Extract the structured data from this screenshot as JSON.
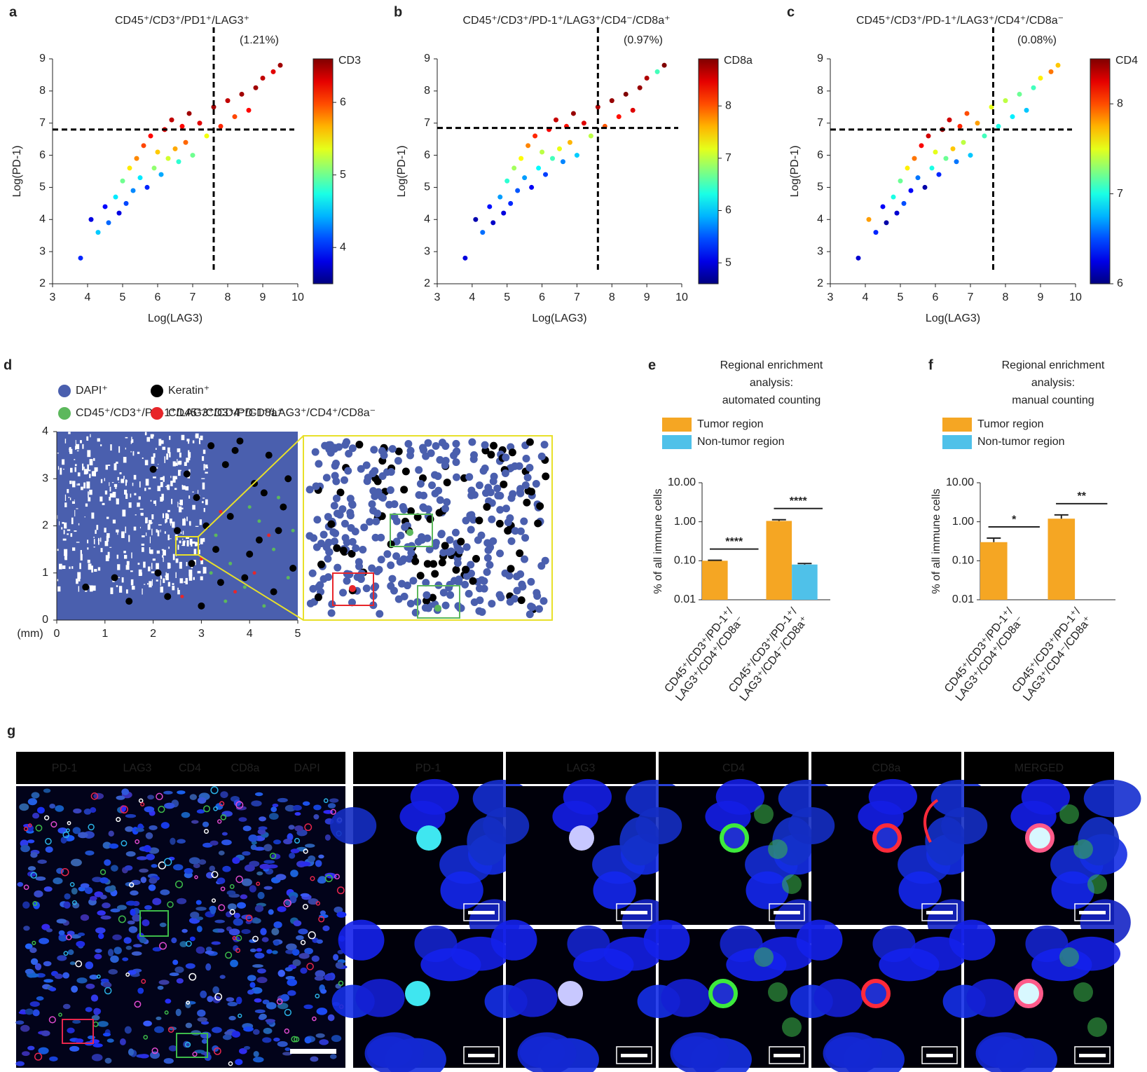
{
  "chart_data": [
    {
      "panel": "a",
      "type": "scatter",
      "title": "CD45⁺/CD3⁺/PD1⁺/LAG3⁺",
      "annotation": "(1.21%)",
      "xlabel": "Log(LAG3)",
      "ylabel": "Log(PD-1)",
      "xlim": [
        3,
        10
      ],
      "ylim": [
        2,
        9
      ],
      "xticks": [
        3,
        4,
        5,
        6,
        7,
        8,
        9,
        10
      ],
      "yticks": [
        2,
        3,
        4,
        5,
        6,
        7,
        8,
        9
      ],
      "threshold_x": 7.6,
      "threshold_y": 6.8,
      "colorbar_label": "CD3",
      "colormap": "jet",
      "clim": [
        3.5,
        6.6
      ],
      "cticks": [
        4,
        5,
        6
      ],
      "x": [
        3.8,
        4.1,
        4.3,
        4.5,
        4.6,
        4.8,
        4.9,
        5.0,
        5.1,
        5.2,
        5.3,
        5.4,
        5.5,
        5.6,
        5.7,
        5.8,
        5.9,
        6.0,
        6.1,
        6.2,
        6.3,
        6.4,
        6.5,
        6.6,
        6.7,
        6.8,
        6.9,
        7.0,
        7.2,
        7.4,
        7.6,
        7.8,
        8.0,
        8.2,
        8.4,
        8.6,
        8.8,
        9.0,
        9.3,
        9.5
      ],
      "y": [
        2.8,
        4.0,
        3.6,
        4.4,
        3.9,
        4.7,
        4.2,
        5.2,
        4.5,
        5.6,
        4.9,
        5.9,
        5.3,
        6.3,
        5.0,
        6.6,
        5.6,
        6.1,
        5.4,
        6.8,
        5.9,
        7.1,
        6.2,
        5.8,
        6.9,
        6.4,
        7.3,
        6.0,
        7.0,
        6.6,
        7.5,
        6.9,
        7.7,
        7.2,
        7.9,
        7.4,
        8.1,
        8.4,
        8.6,
        8.8
      ],
      "color_values": [
        4.0,
        3.8,
        4.5,
        3.9,
        4.2,
        4.6,
        3.8,
        5.0,
        4.1,
        5.5,
        4.3,
        5.8,
        4.6,
        6.0,
        4.0,
        6.2,
        5.1,
        5.6,
        4.4,
        6.3,
        5.3,
        6.4,
        5.7,
        4.8,
        6.2,
        5.9,
        6.5,
        5.0,
        6.3,
        5.4,
        6.5,
        6.1,
        6.4,
        6.0,
        6.5,
        6.2,
        6.5,
        6.4,
        6.3,
        6.5
      ]
    },
    {
      "panel": "b",
      "type": "scatter",
      "title": "CD45⁺/CD3⁺/PD-1⁺/LAG3⁺/CD4⁻/CD8a⁺",
      "annotation": "(0.97%)",
      "xlabel": "Log(LAG3)",
      "ylabel": "Log(PD-1)",
      "xlim": [
        3,
        10
      ],
      "ylim": [
        2,
        9
      ],
      "xticks": [
        3,
        4,
        5,
        6,
        7,
        8,
        9,
        10
      ],
      "yticks": [
        2,
        3,
        4,
        5,
        6,
        7,
        8,
        9
      ],
      "threshold_x": 7.6,
      "threshold_y": 6.85,
      "colorbar_label": "CD8a",
      "colormap": "jet",
      "clim": [
        4.6,
        8.9
      ],
      "cticks": [
        5,
        6,
        7,
        8
      ],
      "x": [
        3.8,
        4.1,
        4.3,
        4.5,
        4.6,
        4.8,
        4.9,
        5.0,
        5.1,
        5.2,
        5.3,
        5.4,
        5.5,
        5.6,
        5.7,
        5.8,
        5.9,
        6.0,
        6.1,
        6.2,
        6.3,
        6.4,
        6.5,
        6.6,
        6.7,
        6.8,
        6.9,
        7.0,
        7.2,
        7.4,
        7.6,
        7.8,
        8.0,
        8.2,
        8.4,
        8.6,
        8.8,
        9.0,
        9.3,
        9.5
      ],
      "y": [
        2.8,
        4.0,
        3.6,
        4.4,
        3.9,
        4.7,
        4.2,
        5.2,
        4.5,
        5.6,
        4.9,
        5.9,
        5.3,
        6.3,
        5.0,
        6.6,
        5.6,
        6.1,
        5.4,
        6.8,
        5.9,
        7.1,
        6.2,
        5.8,
        6.9,
        6.4,
        7.3,
        6.0,
        7.0,
        6.6,
        7.5,
        6.9,
        7.7,
        7.2,
        7.9,
        7.4,
        8.1,
        8.4,
        8.6,
        8.8
      ],
      "color_values": [
        5.0,
        4.8,
        5.6,
        5.2,
        4.9,
        5.8,
        5.0,
        6.4,
        5.3,
        6.9,
        5.5,
        7.3,
        5.8,
        7.8,
        5.1,
        8.2,
        6.2,
        7.0,
        5.4,
        8.4,
        6.5,
        8.6,
        7.2,
        5.7,
        8.3,
        7.6,
        8.8,
        6.0,
        8.5,
        7.0,
        8.7,
        8.0,
        8.8,
        8.3,
        8.9,
        8.5,
        8.8,
        8.7,
        6.5,
        8.9
      ]
    },
    {
      "panel": "c",
      "type": "scatter",
      "title": "CD45⁺/CD3⁺/PD-1⁺/LAG3⁺/CD4⁺/CD8a⁻",
      "annotation": "(0.08%)",
      "xlabel": "Log(LAG3)",
      "ylabel": "Log(PD-1)",
      "xlim": [
        3,
        10
      ],
      "ylim": [
        2,
        9
      ],
      "xticks": [
        3,
        4,
        5,
        6,
        7,
        8,
        9,
        10
      ],
      "yticks": [
        2,
        3,
        4,
        5,
        6,
        7,
        8,
        9
      ],
      "threshold_x": 7.65,
      "threshold_y": 6.8,
      "colorbar_label": "CD4",
      "colormap": "jet",
      "clim": [
        6,
        8.5
      ],
      "cticks": [
        6,
        7,
        8
      ],
      "x": [
        3.8,
        4.1,
        4.3,
        4.5,
        4.6,
        4.8,
        4.9,
        5.0,
        5.1,
        5.2,
        5.3,
        5.4,
        5.5,
        5.6,
        5.7,
        5.8,
        5.9,
        6.0,
        6.1,
        6.2,
        6.3,
        6.4,
        6.5,
        6.6,
        6.7,
        6.8,
        6.9,
        7.0,
        7.2,
        7.4,
        7.6,
        7.8,
        8.0,
        8.2,
        8.4,
        8.6,
        8.8,
        9.0,
        9.3,
        9.5
      ],
      "y": [
        2.8,
        4.0,
        3.6,
        4.4,
        3.9,
        4.7,
        4.2,
        5.2,
        4.5,
        5.6,
        4.9,
        5.9,
        5.3,
        6.3,
        5.0,
        6.6,
        5.6,
        6.1,
        5.4,
        6.8,
        5.9,
        7.1,
        6.2,
        5.8,
        6.9,
        6.4,
        7.3,
        6.0,
        7.0,
        6.6,
        7.5,
        6.9,
        7.7,
        7.2,
        7.9,
        7.4,
        8.1,
        8.4,
        8.6,
        8.8
      ],
      "color_values": [
        6.2,
        7.8,
        6.4,
        6.3,
        6.1,
        7.0,
        6.2,
        7.2,
        6.5,
        7.6,
        6.3,
        7.9,
        6.6,
        8.2,
        6.1,
        8.3,
        7.0,
        7.5,
        6.4,
        8.4,
        7.2,
        8.3,
        7.7,
        6.6,
        8.1,
        7.4,
        8.0,
        6.8,
        7.8,
        7.1,
        7.5,
        7.0,
        7.4,
        6.9,
        7.2,
        6.8,
        7.1,
        7.6,
        7.9,
        7.7
      ]
    },
    {
      "panel": "d",
      "type": "map",
      "x_unit": "(mm)",
      "xlim": [
        0,
        5
      ],
      "ylim": [
        0,
        4
      ],
      "xticks": [
        0,
        1,
        2,
        3,
        4,
        5
      ],
      "yticks": [
        0,
        1,
        2,
        3,
        4
      ],
      "series": [
        {
          "name": "DAPI⁺",
          "color": "#4a5fae"
        },
        {
          "name": "Keratin⁺",
          "color": "#000000",
          "x": [
            2.1,
            2.3,
            2.5,
            2.7,
            2.9,
            3.0,
            3.2,
            3.3,
            3.5,
            3.6,
            3.8,
            3.9,
            4.1,
            4.2,
            4.4,
            4.5,
            4.7,
            4.8,
            2.8,
            3.1,
            3.4,
            3.7,
            4.0,
            4.3,
            4.6,
            1.2,
            1.5,
            0.6,
            2.0,
            4.9
          ],
          "y": [
            1.0,
            0.5,
            1.9,
            3.1,
            2.6,
            0.3,
            3.7,
            1.5,
            3.3,
            2.2,
            3.8,
            0.9,
            2.9,
            1.7,
            3.5,
            0.6,
            2.4,
            3.0,
            1.2,
            2.0,
            0.8,
            3.6,
            1.4,
            2.7,
            1.9,
            0.9,
            0.4,
            0.7,
            3.2,
            1.1
          ]
        },
        {
          "name": "CD45⁺/CD3⁺/PD-1⁺/LAG3⁺/CD4⁻/CD8a⁺",
          "color": "#5cb85c",
          "x": [
            3.3,
            3.6,
            3.9,
            4.2,
            4.5,
            4.8,
            3.5,
            4.0,
            4.6,
            3.2,
            4.3,
            4.9
          ],
          "y": [
            1.8,
            1.2,
            0.7,
            2.1,
            1.5,
            0.9,
            0.4,
            2.4,
            2.6,
            1.0,
            0.3,
            1.9
          ]
        },
        {
          "name": "CD45⁺/CD3⁺/PD-1⁺/LAG3⁺/CD4⁺/CD8a⁻",
          "color": "#e8262a",
          "x": [
            3.0,
            3.7,
            4.4,
            4.1,
            2.6,
            3.4
          ],
          "y": [
            1.3,
            0.6,
            1.8,
            1.0,
            0.5,
            2.3
          ]
        }
      ]
    },
    {
      "panel": "e",
      "type": "bar",
      "title": [
        "Regional enrichment",
        "analysis:",
        "automated counting"
      ],
      "ylabel": "% of all immune cells",
      "log_scale": true,
      "ylim": [
        0.01,
        10
      ],
      "yticks": [
        {
          "value": 0.01,
          "label": "0.01"
        },
        {
          "value": 0.1,
          "label": "0.10"
        },
        {
          "value": 1,
          "label": "1.00"
        },
        {
          "value": 10,
          "label": "10.00"
        }
      ],
      "categories": [
        "CD45⁺/CD3⁺/PD-1⁺/\nLAG3⁺/CD4⁺/CD8a⁻",
        "CD45⁺/CD3⁺/PD-1⁺/\nLAG3⁺/CD4⁻/CD8a⁺"
      ],
      "series": [
        {
          "name": "Tumor region",
          "color": "#f5a623",
          "values": [
            0.1,
            1.05
          ],
          "errors": [
            0.003,
            0.08
          ]
        },
        {
          "name": "Non-tumor region",
          "color": "#4fc1e9",
          "values": [
            null,
            0.08
          ],
          "errors": [
            null,
            0.005
          ]
        }
      ],
      "significance": [
        "****",
        "****"
      ]
    },
    {
      "panel": "f",
      "type": "bar",
      "title": [
        "Regional enrichment",
        "analysis:",
        "manual counting"
      ],
      "ylabel": "% of all immune cells",
      "log_scale": true,
      "ylim": [
        0.01,
        10
      ],
      "yticks": [
        {
          "value": 0.01,
          "label": "0.01"
        },
        {
          "value": 0.1,
          "label": "0.10"
        },
        {
          "value": 1,
          "label": "1.00"
        },
        {
          "value": 10,
          "label": "10.00"
        }
      ],
      "categories": [
        "CD45⁺/CD3⁺/PD-1⁺/\nLAG3⁺/CD4⁺/CD8a⁻",
        "CD45⁺/CD3⁺/PD-1⁺/\nLAG3⁺/CD4⁻/CD8a⁺"
      ],
      "series": [
        {
          "name": "Tumor region",
          "color": "#f5a623",
          "values": [
            0.3,
            1.2
          ],
          "errors": [
            0.08,
            0.3
          ]
        },
        {
          "name": "Non-tumor region",
          "color": "#4fc1e9",
          "values": [
            null,
            null
          ],
          "errors": [
            null,
            null
          ]
        }
      ],
      "significance": [
        "*",
        "**"
      ]
    }
  ],
  "image_panel": {
    "panel": "g",
    "overview_labels": [
      {
        "text": "PD-1",
        "color": "#2ab3e6"
      },
      {
        "text": "LAG3",
        "color": "#ffffff"
      },
      {
        "text": "CD4",
        "color": "#3dbb4a"
      },
      {
        "text": "CD8a",
        "color": "#e8264d"
      },
      {
        "text": "DAPI",
        "color": "#3a4fe0"
      }
    ],
    "column_labels": [
      {
        "text": "PD-1",
        "color": "#2ab3e6"
      },
      {
        "text": "LAG3",
        "color": "#ffffff"
      },
      {
        "text": "CD4",
        "color": "#3dbb4a"
      },
      {
        "text": "CD8a",
        "color": "#e8264d"
      },
      {
        "text": "MERGED",
        "color": "#ffffff"
      }
    ]
  }
}
